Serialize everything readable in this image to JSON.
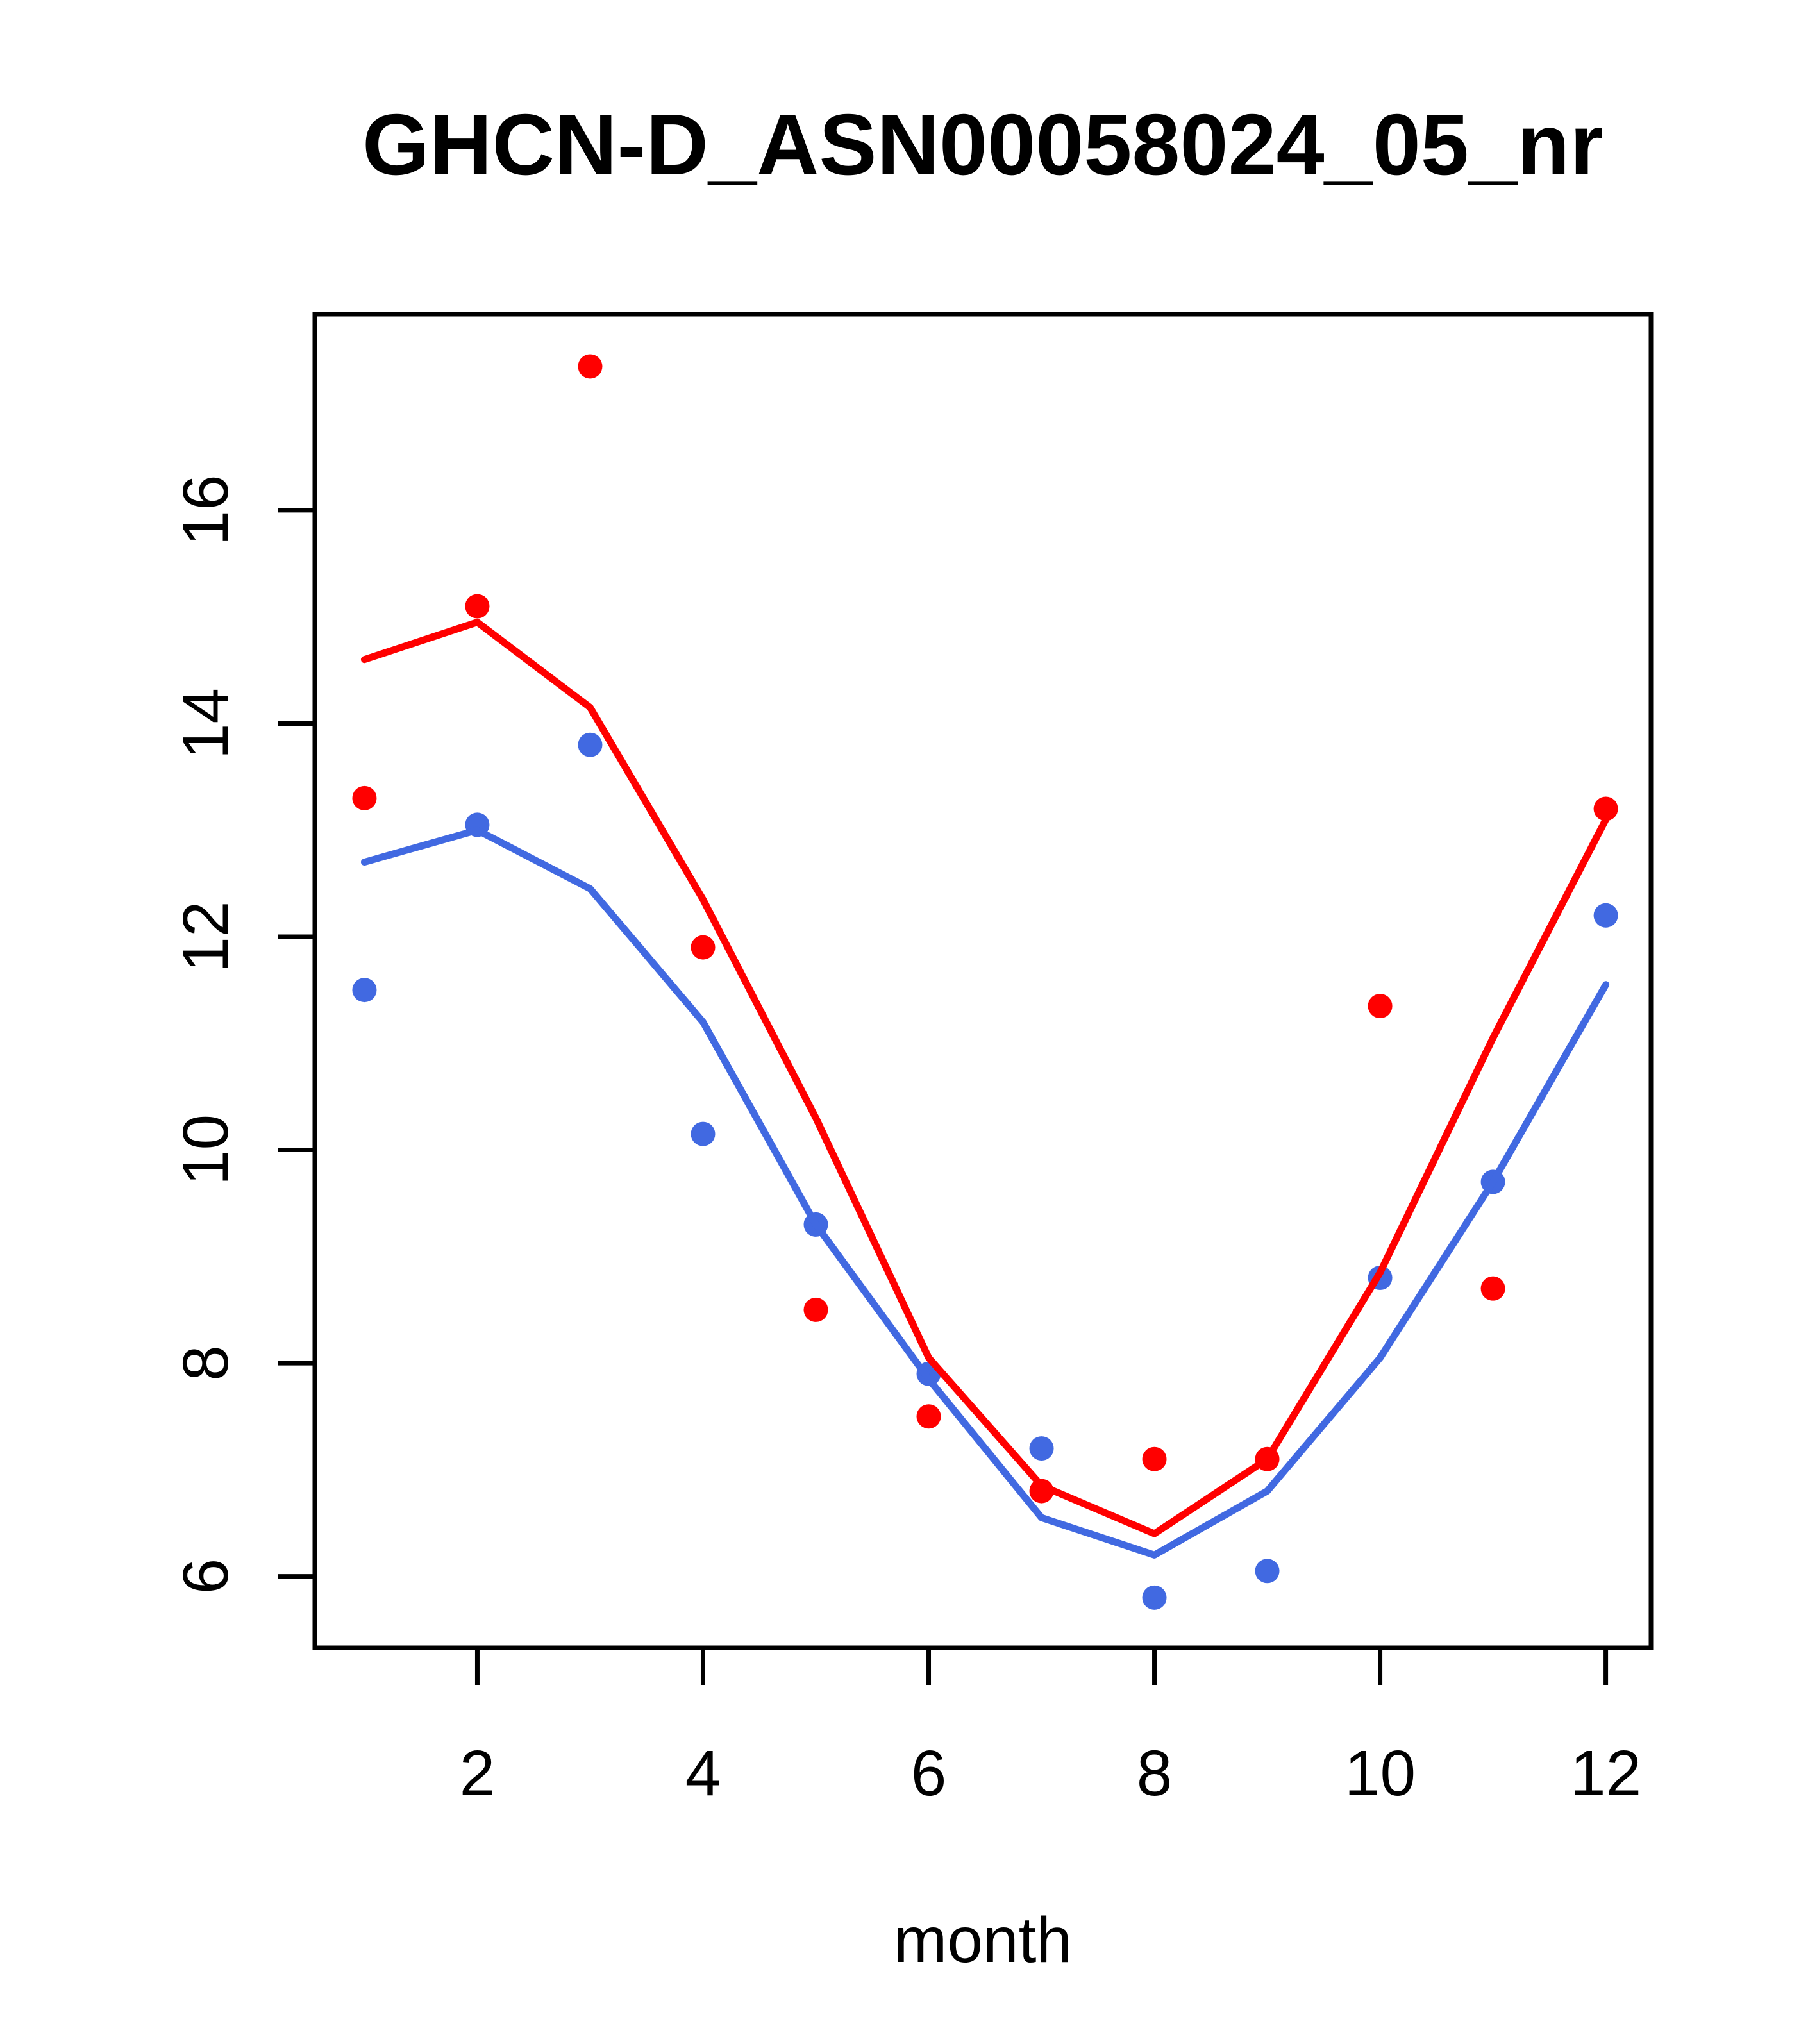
{
  "window": {
    "background_color": "#ffffff"
  },
  "chart_data": {
    "type": "scatter",
    "title": "GHCN-D_ASN00058024_05_nr",
    "xlabel": "month",
    "ylabel": "",
    "x": [
      1,
      2,
      3,
      4,
      5,
      6,
      7,
      8,
      9,
      10,
      11,
      12
    ],
    "x_ticks": [
      2,
      4,
      6,
      8,
      10,
      12
    ],
    "y_ticks": [
      6,
      8,
      10,
      12,
      14,
      16
    ],
    "xlim": [
      0.56,
      12.4
    ],
    "ylim": [
      5.33,
      17.84
    ],
    "grid": false,
    "legend_position": "none",
    "colors": {
      "red": "#FF0000",
      "blue": "#4169E1",
      "axis": "#000000"
    },
    "series": [
      {
        "name": "red-points",
        "kind": "points",
        "color": "#FF0000",
        "values": [
          13.3,
          15.1,
          17.35,
          11.9,
          8.5,
          7.5,
          6.8,
          7.1,
          7.1,
          11.35,
          8.7,
          13.2
        ]
      },
      {
        "name": "blue-points",
        "kind": "points",
        "color": "#4169E1",
        "values": [
          11.5,
          13.05,
          13.8,
          10.15,
          9.3,
          7.9,
          7.2,
          5.8,
          6.05,
          8.8,
          9.7,
          12.2
        ]
      },
      {
        "name": "blue-fit-line",
        "kind": "line",
        "color": "#4169E1",
        "values": [
          12.7,
          13.0,
          12.45,
          11.2,
          9.3,
          7.85,
          6.55,
          6.2,
          6.8,
          8.05,
          9.7,
          11.55
        ]
      },
      {
        "name": "red-fit-line",
        "kind": "line",
        "color": "#FF0000",
        "values": [
          14.6,
          14.95,
          14.15,
          12.35,
          10.3,
          8.05,
          6.85,
          6.4,
          7.1,
          8.85,
          11.05,
          13.1
        ]
      }
    ]
  }
}
